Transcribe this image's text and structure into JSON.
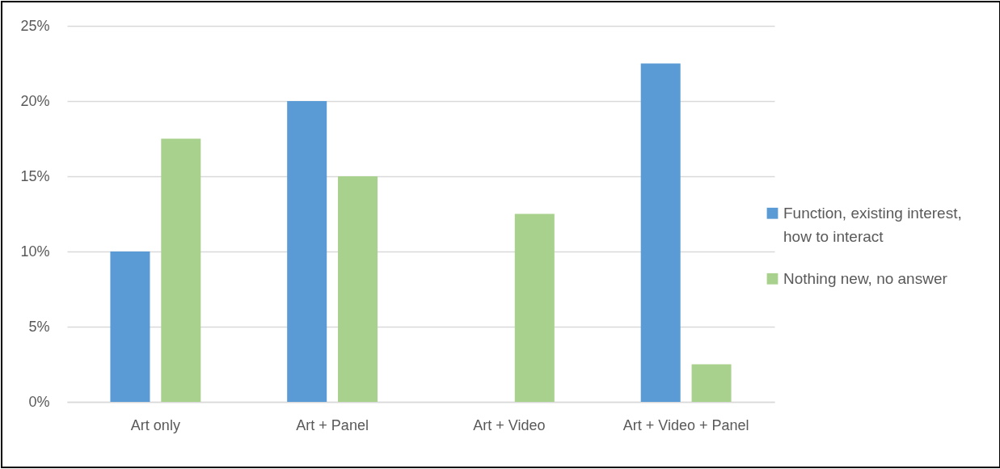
{
  "chart_data": {
    "type": "bar",
    "categories": [
      "Art only",
      "Art + Panel",
      "Art + Video",
      "Art + Video + Panel"
    ],
    "series": [
      {
        "name": "Function, existing interest, how to interact",
        "color": "#5b9bd5",
        "values": [
          10,
          20,
          null,
          22.5
        ]
      },
      {
        "name": "Nothing new, no answer",
        "color": "#a9d18e",
        "values": [
          17.5,
          15,
          12.5,
          2.5
        ]
      }
    ],
    "ylim": [
      0,
      25
    ],
    "yticks": [
      {
        "value": 0,
        "label": "0%"
      },
      {
        "value": 5,
        "label": "5%"
      },
      {
        "value": 10,
        "label": "10%"
      },
      {
        "value": 15,
        "label": "15%"
      },
      {
        "value": 20,
        "label": "20%"
      },
      {
        "value": 25,
        "label": "25%"
      }
    ],
    "grid": "y",
    "legend": "right"
  }
}
